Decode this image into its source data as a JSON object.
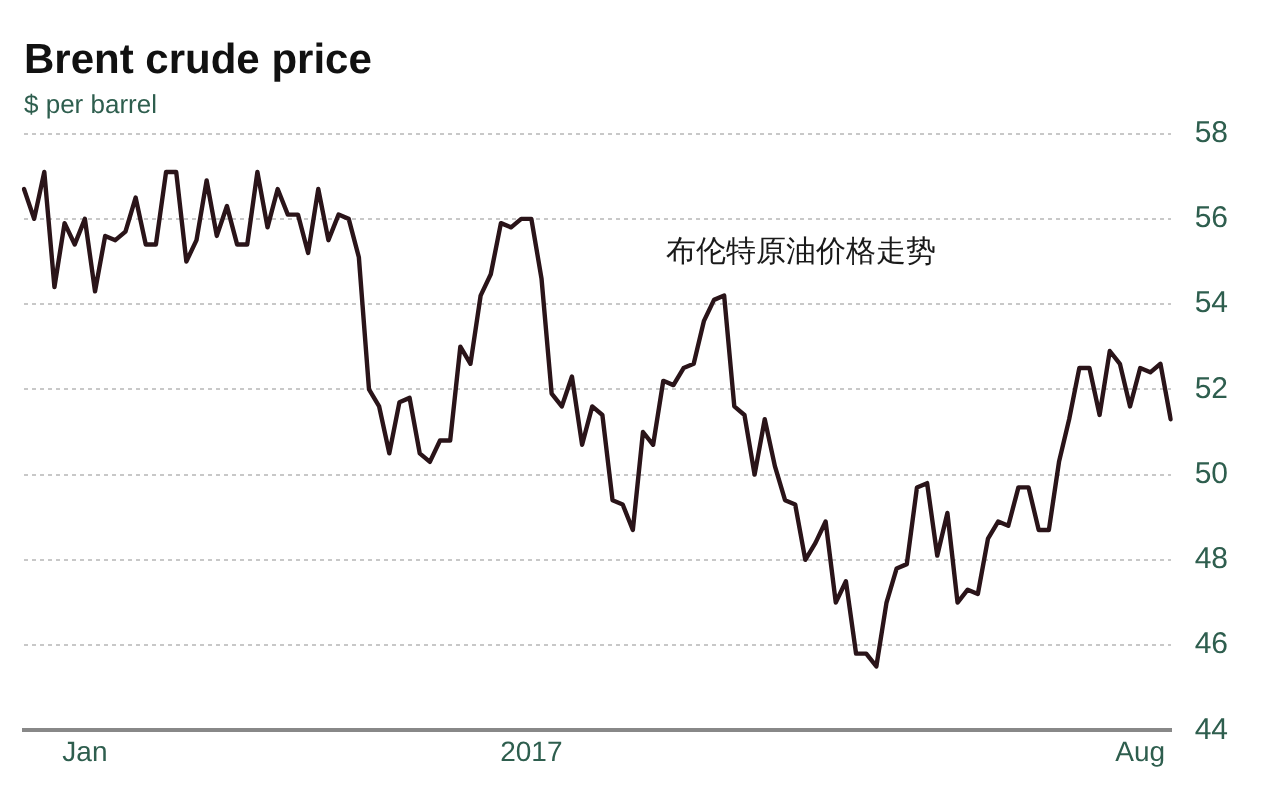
{
  "chart_data": {
    "type": "line",
    "title": "Brent crude price",
    "subtitle": "$ per barrel",
    "annotations": [
      "布伦特原油价格走势"
    ],
    "categories": [
      null,
      null,
      null,
      null,
      null,
      null,
      "Jan",
      null,
      null,
      null,
      null,
      null,
      null,
      null,
      null,
      null,
      null,
      null,
      null,
      null,
      null,
      null,
      null,
      null,
      null,
      null,
      null,
      null,
      null,
      null,
      null,
      null,
      null,
      null,
      null,
      null,
      null,
      null,
      null,
      null,
      null,
      null,
      null,
      null,
      null,
      null,
      null,
      null,
      null,
      null,
      "2017",
      null,
      null,
      null,
      null,
      null,
      null,
      null,
      null,
      null,
      null,
      null,
      null,
      null,
      null,
      null,
      null,
      null,
      null,
      null,
      null,
      null,
      null,
      null,
      null,
      null,
      null,
      null,
      null,
      null,
      null,
      null,
      null,
      null,
      null,
      null,
      null,
      null,
      null,
      null,
      null,
      null,
      null,
      null,
      null,
      null,
      null,
      null,
      null,
      null,
      null,
      null,
      null,
      null,
      null,
      null,
      null,
      null,
      null,
      null,
      "Aug",
      null,
      null,
      null
    ],
    "series": [
      {
        "color": "#2a1419",
        "values": [
          56.7,
          56.0,
          57.1,
          54.4,
          55.9,
          55.4,
          56.0,
          54.3,
          55.6,
          55.5,
          55.7,
          56.5,
          55.4,
          55.4,
          57.1,
          57.1,
          55.0,
          55.5,
          56.9,
          55.6,
          56.3,
          55.4,
          55.4,
          57.1,
          55.8,
          56.7,
          56.1,
          56.1,
          55.2,
          56.7,
          55.5,
          56.1,
          56.0,
          55.1,
          52.0,
          51.6,
          50.5,
          51.7,
          51.8,
          50.5,
          50.3,
          50.8,
          50.8,
          53.0,
          52.6,
          54.2,
          54.7,
          55.9,
          55.8,
          56.0,
          56.0,
          54.6,
          51.9,
          51.6,
          52.3,
          50.7,
          51.6,
          51.4,
          49.4,
          49.3,
          48.7,
          51.0,
          50.7,
          52.2,
          52.1,
          52.5,
          52.6,
          53.6,
          54.1,
          54.2,
          51.6,
          51.4,
          50.0,
          51.3,
          50.2,
          49.4,
          49.3,
          48.0,
          48.4,
          48.9,
          47.0,
          47.5,
          45.8,
          45.8,
          45.5,
          47.0,
          47.8,
          47.9,
          49.7,
          49.8,
          48.1,
          49.1,
          47.0,
          47.3,
          47.2,
          48.5,
          48.9,
          48.8,
          49.7,
          49.7,
          48.7,
          48.7,
          50.3,
          51.3,
          52.5,
          52.5,
          51.4,
          52.9,
          52.6,
          51.6,
          52.5,
          52.4,
          52.6,
          51.3
        ]
      }
    ],
    "ylim": [
      44,
      58
    ],
    "yticks": [
      44,
      46,
      48,
      50,
      52,
      54,
      56,
      58
    ],
    "grid": "y",
    "legend": false,
    "marker": "none",
    "line_style": "solid"
  }
}
